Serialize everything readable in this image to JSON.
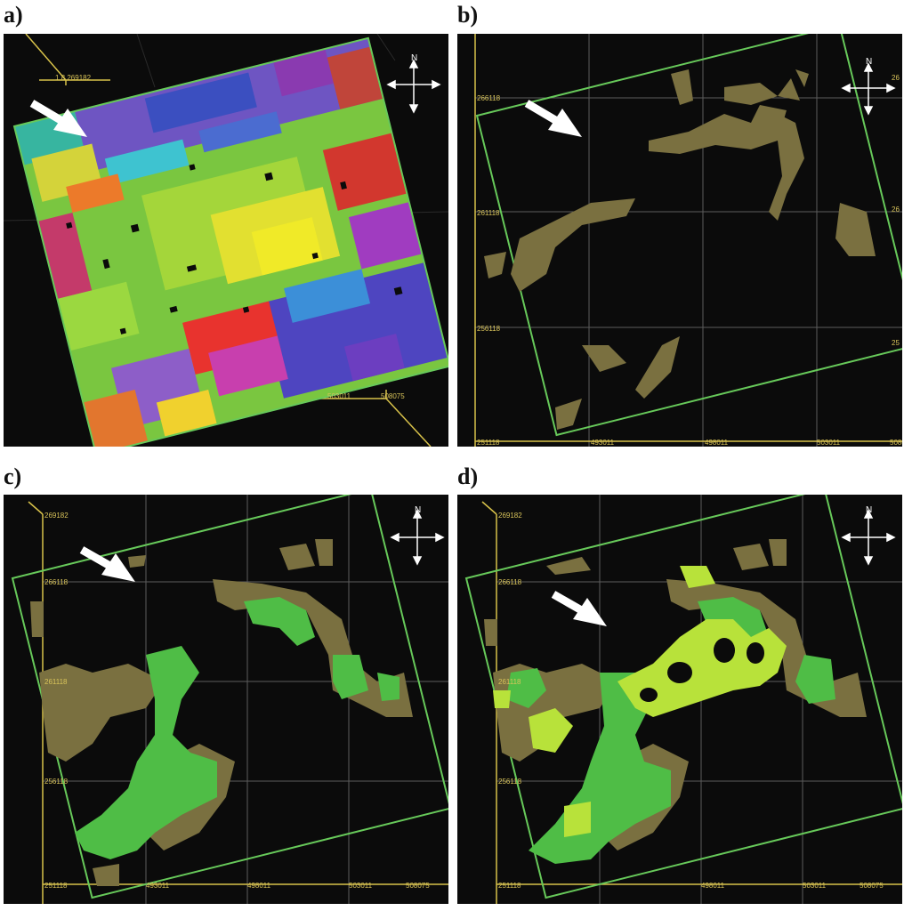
{
  "figure": {
    "panels": [
      {
        "label": "a)",
        "ticks": [
          "1.8 269182",
          "503011",
          "508075"
        ]
      },
      {
        "label": "b)",
        "ticks": [
          "266118",
          "261118",
          "256118",
          "251118",
          "493011",
          "498011",
          "503011",
          "508075"
        ],
        "edge_ticks": [
          "26",
          "26",
          "25"
        ]
      },
      {
        "label": "c)",
        "ticks": [
          "269182",
          "266118",
          "261118",
          "256118",
          "251118",
          "493011",
          "498011",
          "503011",
          "508075"
        ]
      },
      {
        "label": "d)",
        "ticks": [
          "269182",
          "266118",
          "261118",
          "256118",
          "251118",
          "498011",
          "503011",
          "508075"
        ]
      }
    ],
    "compass_label": "N",
    "colors": {
      "background": "#0b0b0b",
      "grid_line": "#6f6f6f",
      "outline": "#67c95a",
      "axis": "#d8c24a",
      "olive": "#7a7040",
      "green": "#4fbd46",
      "light_green": "#b8e23a"
    }
  }
}
